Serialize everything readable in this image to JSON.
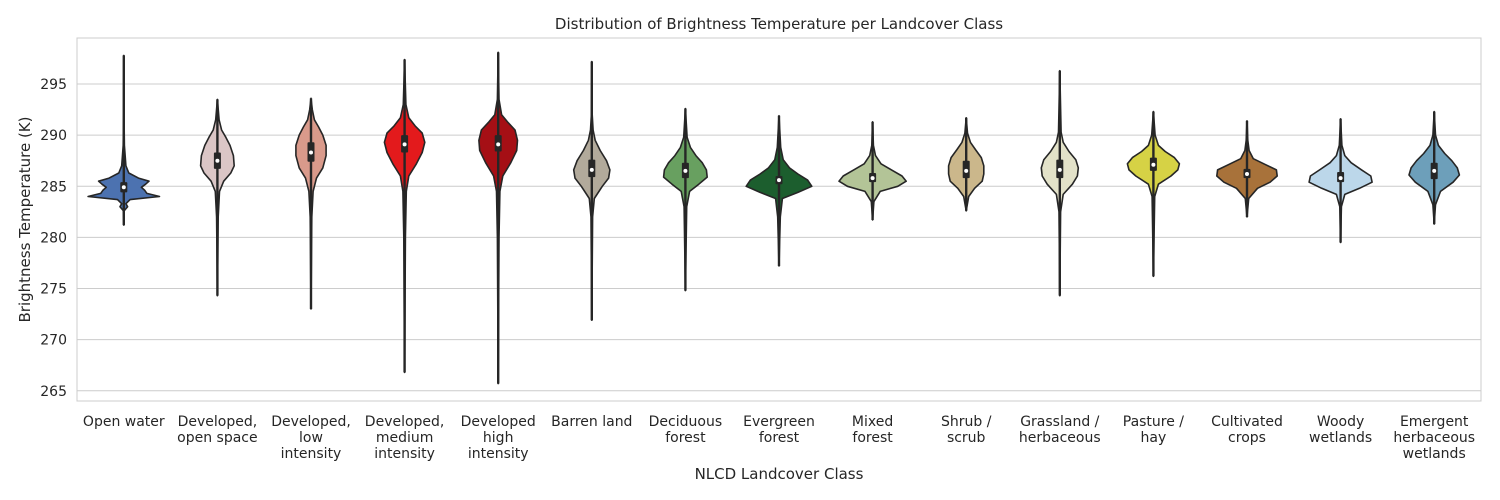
{
  "chart_data": {
    "type": "violin",
    "title": "Distribution of Brightness Temperature per Landcover Class",
    "xlabel": "NLCD Landcover Class",
    "ylabel": "Brightness Temperature (K)",
    "ylim": [
      264,
      299.5
    ],
    "yticks": [
      265,
      270,
      275,
      280,
      285,
      290,
      295
    ],
    "grid": "horizontal",
    "categories": [
      {
        "label": [
          "Open water"
        ],
        "color": "#4c72b0",
        "min": 281.2,
        "max": 297.8,
        "q1": 284.4,
        "median": 284.9,
        "q3": 285.4,
        "profile": [
          [
            281.2,
            0
          ],
          [
            282.6,
            0.01
          ],
          [
            283.0,
            0.09
          ],
          [
            283.3,
            0.05
          ],
          [
            283.7,
            0.15
          ],
          [
            284.0,
            0.85
          ],
          [
            284.3,
            0.55
          ],
          [
            284.6,
            0.5
          ],
          [
            284.9,
            0.42
          ],
          [
            285.2,
            0.52
          ],
          [
            285.5,
            0.6
          ],
          [
            285.8,
            0.35
          ],
          [
            286.3,
            0.12
          ],
          [
            287.0,
            0.05
          ],
          [
            289.0,
            0.015
          ],
          [
            292.0,
            0.005
          ],
          [
            297.8,
            0
          ]
        ]
      },
      {
        "label": [
          "Developed,",
          "open space"
        ],
        "color": "#dbc6c6",
        "min": 274.3,
        "max": 293.5,
        "q1": 286.7,
        "median": 287.5,
        "q3": 288.3,
        "profile": [
          [
            274.3,
            0
          ],
          [
            282.0,
            0.02
          ],
          [
            284.5,
            0.05
          ],
          [
            285.5,
            0.15
          ],
          [
            286.3,
            0.32
          ],
          [
            287.0,
            0.4
          ],
          [
            288.0,
            0.38
          ],
          [
            289.0,
            0.3
          ],
          [
            289.8,
            0.2
          ],
          [
            290.5,
            0.1
          ],
          [
            291.5,
            0.04
          ],
          [
            293.5,
            0
          ]
        ]
      },
      {
        "label": [
          "Developed,",
          "low",
          "intensity"
        ],
        "color": "#d99a8b",
        "min": 273.0,
        "max": 293.6,
        "q1": 287.4,
        "median": 288.3,
        "q3": 289.3,
        "profile": [
          [
            273.0,
            0
          ],
          [
            282.0,
            0.02
          ],
          [
            284.5,
            0.05
          ],
          [
            285.8,
            0.13
          ],
          [
            286.8,
            0.28
          ],
          [
            288.0,
            0.36
          ],
          [
            289.0,
            0.36
          ],
          [
            290.0,
            0.28
          ],
          [
            290.8,
            0.18
          ],
          [
            291.5,
            0.08
          ],
          [
            292.5,
            0.03
          ],
          [
            293.6,
            0
          ]
        ]
      },
      {
        "label": [
          "Developed,",
          "medium",
          "intensity"
        ],
        "color": "#e31a1c",
        "min": 266.8,
        "max": 297.4,
        "q1": 288.3,
        "median": 289.1,
        "q3": 290.0,
        "profile": [
          [
            266.8,
            0
          ],
          [
            280.0,
            0.02
          ],
          [
            284.5,
            0.04
          ],
          [
            286.0,
            0.1
          ],
          [
            287.2,
            0.28
          ],
          [
            288.3,
            0.42
          ],
          [
            289.3,
            0.48
          ],
          [
            290.2,
            0.42
          ],
          [
            290.9,
            0.25
          ],
          [
            291.7,
            0.1
          ],
          [
            293.0,
            0.03
          ],
          [
            297.4,
            0
          ]
        ]
      },
      {
        "label": [
          "Developed",
          "high",
          "intensity"
        ],
        "color": "#a50f15",
        "min": 265.7,
        "max": 298.1,
        "q1": 288.4,
        "median": 289.1,
        "q3": 290.0,
        "profile": [
          [
            265.7,
            0
          ],
          [
            280.0,
            0.02
          ],
          [
            284.5,
            0.04
          ],
          [
            286.0,
            0.11
          ],
          [
            287.3,
            0.3
          ],
          [
            288.5,
            0.44
          ],
          [
            289.5,
            0.46
          ],
          [
            290.5,
            0.4
          ],
          [
            291.3,
            0.22
          ],
          [
            292.0,
            0.08
          ],
          [
            293.5,
            0.02
          ],
          [
            298.1,
            0
          ]
        ]
      },
      {
        "label": [
          "Barren land"
        ],
        "color": "#b2aa9b",
        "min": 271.9,
        "max": 297.2,
        "q1": 285.9,
        "median": 286.6,
        "q3": 287.6,
        "profile": [
          [
            271.9,
            0
          ],
          [
            282.0,
            0.02
          ],
          [
            283.8,
            0.06
          ],
          [
            285.0,
            0.25
          ],
          [
            285.8,
            0.4
          ],
          [
            286.6,
            0.43
          ],
          [
            287.5,
            0.35
          ],
          [
            288.5,
            0.2
          ],
          [
            289.5,
            0.08
          ],
          [
            290.5,
            0.03
          ],
          [
            292.0,
            0.01
          ],
          [
            297.2,
            0
          ]
        ]
      },
      {
        "label": [
          "Deciduous",
          "forest"
        ],
        "color": "#68a060",
        "min": 274.8,
        "max": 292.6,
        "q1": 285.8,
        "median": 286.5,
        "q3": 287.3,
        "profile": [
          [
            274.8,
            0
          ],
          [
            283.0,
            0.03
          ],
          [
            284.5,
            0.1
          ],
          [
            285.2,
            0.32
          ],
          [
            285.9,
            0.52
          ],
          [
            286.6,
            0.5
          ],
          [
            287.3,
            0.4
          ],
          [
            288.0,
            0.25
          ],
          [
            288.8,
            0.12
          ],
          [
            289.8,
            0.04
          ],
          [
            292.6,
            0
          ]
        ]
      },
      {
        "label": [
          "Evergreen",
          "forest"
        ],
        "color": "#1c5e2e",
        "min": 277.2,
        "max": 291.9,
        "q1": 285.2,
        "median": 285.6,
        "q3": 286.0,
        "profile": [
          [
            277.2,
            0
          ],
          [
            282.0,
            0.03
          ],
          [
            283.8,
            0.08
          ],
          [
            284.4,
            0.45
          ],
          [
            285.0,
            0.78
          ],
          [
            285.6,
            0.68
          ],
          [
            286.2,
            0.45
          ],
          [
            286.8,
            0.25
          ],
          [
            287.6,
            0.1
          ],
          [
            288.8,
            0.04
          ],
          [
            291.9,
            0
          ]
        ]
      },
      {
        "label": [
          "Mixed",
          "forest"
        ],
        "color": "#b3c497",
        "min": 281.7,
        "max": 291.3,
        "q1": 285.4,
        "median": 285.8,
        "q3": 286.3,
        "profile": [
          [
            281.7,
            0
          ],
          [
            283.5,
            0.03
          ],
          [
            284.5,
            0.18
          ],
          [
            285.0,
            0.6
          ],
          [
            285.5,
            0.8
          ],
          [
            286.0,
            0.7
          ],
          [
            286.6,
            0.45
          ],
          [
            287.2,
            0.2
          ],
          [
            288.0,
            0.07
          ],
          [
            289.0,
            0.02
          ],
          [
            291.3,
            0
          ]
        ]
      },
      {
        "label": [
          "Shrub /",
          "scrub"
        ],
        "color": "#cbb78b",
        "min": 282.6,
        "max": 291.7,
        "q1": 285.8,
        "median": 286.5,
        "q3": 287.5,
        "profile": [
          [
            282.6,
            0
          ],
          [
            284.0,
            0.06
          ],
          [
            284.8,
            0.2
          ],
          [
            285.5,
            0.38
          ],
          [
            286.2,
            0.42
          ],
          [
            287.0,
            0.42
          ],
          [
            287.8,
            0.36
          ],
          [
            288.6,
            0.22
          ],
          [
            289.3,
            0.1
          ],
          [
            290.2,
            0.03
          ],
          [
            291.7,
            0
          ]
        ]
      },
      {
        "label": [
          "Grassland /",
          "herbaceous"
        ],
        "color": "#e3e2c9",
        "min": 274.3,
        "max": 296.3,
        "q1": 285.8,
        "median": 286.6,
        "q3": 287.6,
        "profile": [
          [
            274.3,
            0
          ],
          [
            282.5,
            0.02
          ],
          [
            284.2,
            0.08
          ],
          [
            285.2,
            0.3
          ],
          [
            286.0,
            0.42
          ],
          [
            286.8,
            0.44
          ],
          [
            287.6,
            0.38
          ],
          [
            288.4,
            0.22
          ],
          [
            289.3,
            0.08
          ],
          [
            290.3,
            0.03
          ],
          [
            296.3,
            0
          ]
        ]
      },
      {
        "label": [
          "Pasture /",
          "hay"
        ],
        "color": "#d6d245",
        "min": 276.2,
        "max": 292.3,
        "q1": 286.5,
        "median": 287.1,
        "q3": 287.8,
        "profile": [
          [
            276.2,
            0
          ],
          [
            284.0,
            0.03
          ],
          [
            285.2,
            0.12
          ],
          [
            286.0,
            0.42
          ],
          [
            286.6,
            0.58
          ],
          [
            287.2,
            0.62
          ],
          [
            287.8,
            0.5
          ],
          [
            288.4,
            0.28
          ],
          [
            289.0,
            0.12
          ],
          [
            290.0,
            0.04
          ],
          [
            292.3,
            0
          ]
        ]
      },
      {
        "label": [
          "Cultivated",
          "crops"
        ],
        "color": "#a8723a",
        "min": 282.0,
        "max": 291.4,
        "q1": 285.8,
        "median": 286.2,
        "q3": 286.7,
        "profile": [
          [
            282.0,
            0
          ],
          [
            283.8,
            0.04
          ],
          [
            284.8,
            0.25
          ],
          [
            285.4,
            0.55
          ],
          [
            286.0,
            0.72
          ],
          [
            286.6,
            0.7
          ],
          [
            287.1,
            0.45
          ],
          [
            287.7,
            0.15
          ],
          [
            288.5,
            0.05
          ],
          [
            289.5,
            0.02
          ],
          [
            291.4,
            0
          ]
        ]
      },
      {
        "label": [
          "Woody",
          "wetlands"
        ],
        "color": "#bcd7ea",
        "min": 279.5,
        "max": 291.6,
        "q1": 285.4,
        "median": 285.8,
        "q3": 286.4,
        "profile": [
          [
            279.5,
            0
          ],
          [
            283.0,
            0.02
          ],
          [
            284.2,
            0.1
          ],
          [
            284.8,
            0.45
          ],
          [
            285.4,
            0.75
          ],
          [
            286.0,
            0.72
          ],
          [
            286.6,
            0.5
          ],
          [
            287.3,
            0.25
          ],
          [
            288.0,
            0.1
          ],
          [
            289.0,
            0.03
          ],
          [
            291.6,
            0
          ]
        ]
      },
      {
        "label": [
          "Emergent",
          "herbaceous",
          "wetlands"
        ],
        "color": "#6d9fba",
        "min": 281.3,
        "max": 292.3,
        "q1": 285.7,
        "median": 286.5,
        "q3": 287.3,
        "profile": [
          [
            281.3,
            0
          ],
          [
            283.2,
            0.03
          ],
          [
            284.5,
            0.15
          ],
          [
            285.4,
            0.45
          ],
          [
            286.1,
            0.6
          ],
          [
            286.8,
            0.55
          ],
          [
            287.5,
            0.42
          ],
          [
            288.2,
            0.25
          ],
          [
            289.0,
            0.1
          ],
          [
            290.0,
            0.03
          ],
          [
            292.3,
            0
          ]
        ]
      }
    ]
  }
}
